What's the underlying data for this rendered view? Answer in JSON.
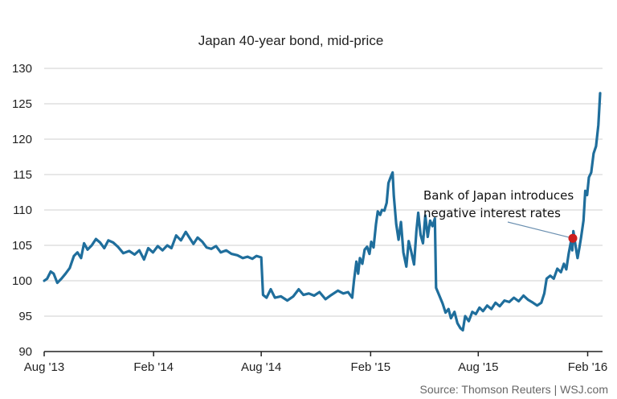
{
  "chart_data": {
    "type": "line",
    "title": "Japan 40-year bond, mid-price",
    "xlabel": "",
    "ylabel": "",
    "ylim": [
      90,
      130
    ],
    "yticks": [
      90,
      95,
      100,
      105,
      110,
      115,
      120,
      125,
      130
    ],
    "xlim": [
      "2013-08-01",
      "2016-02-26"
    ],
    "xticks": [
      {
        "date": "2013-08-01",
        "label": "Aug '13"
      },
      {
        "date": "2014-02-01",
        "label": "Feb '14"
      },
      {
        "date": "2014-08-01",
        "label": "Aug '14"
      },
      {
        "date": "2015-02-01",
        "label": "Feb '15"
      },
      {
        "date": "2015-08-01",
        "label": "Aug '15"
      },
      {
        "date": "2016-02-01",
        "label": "Feb '16"
      }
    ],
    "grid": "horizontal",
    "line_color": "#1f6e9c",
    "series": [
      {
        "points": [
          [
            "2013-08-01",
            100.0
          ],
          [
            "2013-08-06",
            100.3
          ],
          [
            "2013-08-12",
            101.3
          ],
          [
            "2013-08-17",
            101.0
          ],
          [
            "2013-08-23",
            99.7
          ],
          [
            "2013-08-30",
            100.3
          ],
          [
            "2013-09-06",
            101.0
          ],
          [
            "2013-09-13",
            101.8
          ],
          [
            "2013-09-20",
            103.5
          ],
          [
            "2013-09-26",
            104.0
          ],
          [
            "2013-10-02",
            103.2
          ],
          [
            "2013-10-07",
            105.3
          ],
          [
            "2013-10-13",
            104.4
          ],
          [
            "2013-10-20",
            105.0
          ],
          [
            "2013-10-27",
            105.9
          ],
          [
            "2013-11-03",
            105.4
          ],
          [
            "2013-11-10",
            104.6
          ],
          [
            "2013-11-17",
            105.7
          ],
          [
            "2013-11-25",
            105.4
          ],
          [
            "2013-12-03",
            104.8
          ],
          [
            "2013-12-12",
            103.9
          ],
          [
            "2013-12-22",
            104.2
          ],
          [
            "2013-12-31",
            103.7
          ],
          [
            "2014-01-08",
            104.3
          ],
          [
            "2014-01-16",
            103.0
          ],
          [
            "2014-01-23",
            104.6
          ],
          [
            "2014-01-31",
            104.0
          ],
          [
            "2014-02-08",
            104.9
          ],
          [
            "2014-02-16",
            104.3
          ],
          [
            "2014-02-24",
            105.0
          ],
          [
            "2014-03-03",
            104.6
          ],
          [
            "2014-03-11",
            106.4
          ],
          [
            "2014-03-19",
            105.7
          ],
          [
            "2014-03-27",
            106.9
          ],
          [
            "2014-04-03",
            106.0
          ],
          [
            "2014-04-09",
            105.2
          ],
          [
            "2014-04-16",
            106.1
          ],
          [
            "2014-04-24",
            105.5
          ],
          [
            "2014-05-01",
            104.7
          ],
          [
            "2014-05-09",
            104.5
          ],
          [
            "2014-05-17",
            104.9
          ],
          [
            "2014-05-25",
            104.0
          ],
          [
            "2014-06-03",
            104.3
          ],
          [
            "2014-06-12",
            103.8
          ],
          [
            "2014-06-22",
            103.6
          ],
          [
            "2014-07-01",
            103.2
          ],
          [
            "2014-07-09",
            103.4
          ],
          [
            "2014-07-17",
            103.1
          ],
          [
            "2014-07-24",
            103.5
          ],
          [
            "2014-08-01",
            103.3
          ],
          [
            "2014-08-04",
            98.0
          ],
          [
            "2014-08-10",
            97.6
          ],
          [
            "2014-08-17",
            98.8
          ],
          [
            "2014-08-24",
            97.6
          ],
          [
            "2014-09-03",
            97.8
          ],
          [
            "2014-09-14",
            97.2
          ],
          [
            "2014-09-24",
            97.8
          ],
          [
            "2014-10-03",
            98.8
          ],
          [
            "2014-10-11",
            98.0
          ],
          [
            "2014-10-20",
            98.2
          ],
          [
            "2014-10-29",
            97.9
          ],
          [
            "2014-11-07",
            98.4
          ],
          [
            "2014-11-17",
            97.4
          ],
          [
            "2014-11-27",
            98.0
          ],
          [
            "2014-12-08",
            98.6
          ],
          [
            "2014-12-17",
            98.2
          ],
          [
            "2014-12-25",
            98.4
          ],
          [
            "2015-01-01",
            97.6
          ],
          [
            "2015-01-04",
            100.0
          ],
          [
            "2015-01-08",
            102.7
          ],
          [
            "2015-01-11",
            101.0
          ],
          [
            "2015-01-14",
            103.2
          ],
          [
            "2015-01-18",
            102.4
          ],
          [
            "2015-01-22",
            104.4
          ],
          [
            "2015-01-26",
            104.8
          ],
          [
            "2015-01-30",
            103.8
          ],
          [
            "2015-02-02",
            105.5
          ],
          [
            "2015-02-06",
            104.7
          ],
          [
            "2015-02-10",
            108.0
          ],
          [
            "2015-02-13",
            109.8
          ],
          [
            "2015-02-17",
            109.3
          ],
          [
            "2015-02-20",
            110.0
          ],
          [
            "2015-02-24",
            109.9
          ],
          [
            "2015-02-28",
            111.0
          ],
          [
            "2015-03-03",
            113.8
          ],
          [
            "2015-03-07",
            114.7
          ],
          [
            "2015-03-10",
            115.3
          ],
          [
            "2015-03-12",
            112.0
          ],
          [
            "2015-03-16",
            108.0
          ],
          [
            "2015-03-20",
            105.8
          ],
          [
            "2015-03-24",
            108.3
          ],
          [
            "2015-03-28",
            104.0
          ],
          [
            "2015-04-02",
            102.0
          ],
          [
            "2015-04-06",
            105.6
          ],
          [
            "2015-04-10",
            104.2
          ],
          [
            "2015-04-15",
            102.3
          ],
          [
            "2015-04-19",
            107.0
          ],
          [
            "2015-04-22",
            109.6
          ],
          [
            "2015-04-26",
            106.5
          ],
          [
            "2015-04-30",
            105.3
          ],
          [
            "2015-05-04",
            109.2
          ],
          [
            "2015-05-08",
            106.2
          ],
          [
            "2015-05-12",
            108.5
          ],
          [
            "2015-05-16",
            107.7
          ],
          [
            "2015-05-20",
            108.8
          ],
          [
            "2015-05-22",
            99.0
          ],
          [
            "2015-05-27",
            98.0
          ],
          [
            "2015-06-02",
            96.8
          ],
          [
            "2015-06-07",
            95.5
          ],
          [
            "2015-06-12",
            96.0
          ],
          [
            "2015-06-16",
            94.7
          ],
          [
            "2015-06-22",
            95.6
          ],
          [
            "2015-06-27",
            94.0
          ],
          [
            "2015-07-02",
            93.3
          ],
          [
            "2015-07-06",
            93.0
          ],
          [
            "2015-07-10",
            95.0
          ],
          [
            "2015-07-16",
            94.3
          ],
          [
            "2015-07-22",
            95.6
          ],
          [
            "2015-07-28",
            95.3
          ],
          [
            "2015-08-03",
            96.2
          ],
          [
            "2015-08-09",
            95.7
          ],
          [
            "2015-08-16",
            96.5
          ],
          [
            "2015-08-23",
            96.0
          ],
          [
            "2015-08-30",
            96.9
          ],
          [
            "2015-09-06",
            96.4
          ],
          [
            "2015-09-14",
            97.2
          ],
          [
            "2015-09-22",
            97.0
          ],
          [
            "2015-09-30",
            97.6
          ],
          [
            "2015-10-08",
            97.1
          ],
          [
            "2015-10-16",
            97.9
          ],
          [
            "2015-10-24",
            97.3
          ],
          [
            "2015-11-01",
            96.9
          ],
          [
            "2015-11-08",
            96.5
          ],
          [
            "2015-11-15",
            96.9
          ],
          [
            "2015-11-20",
            98.2
          ],
          [
            "2015-11-24",
            100.3
          ],
          [
            "2015-11-30",
            100.7
          ],
          [
            "2015-12-06",
            100.3
          ],
          [
            "2015-12-12",
            101.7
          ],
          [
            "2015-12-18",
            101.2
          ],
          [
            "2015-12-23",
            102.4
          ],
          [
            "2015-12-27",
            101.6
          ],
          [
            "2015-12-31",
            103.8
          ],
          [
            "2016-01-04",
            105.6
          ],
          [
            "2016-01-06",
            104.3
          ],
          [
            "2016-01-08",
            107.0
          ],
          [
            "2016-01-12",
            104.7
          ],
          [
            "2016-01-15",
            103.2
          ],
          [
            "2016-01-18",
            104.6
          ],
          [
            "2016-01-21",
            106.2
          ],
          [
            "2016-01-25",
            108.5
          ],
          [
            "2016-01-28",
            112.7
          ],
          [
            "2016-01-31",
            112.1
          ],
          [
            "2016-02-03",
            114.6
          ],
          [
            "2016-02-07",
            115.3
          ],
          [
            "2016-02-11",
            118.0
          ],
          [
            "2016-02-15",
            119.0
          ],
          [
            "2016-02-19",
            122.0
          ],
          [
            "2016-02-22",
            126.5
          ]
        ]
      }
    ],
    "annotations": [
      {
        "lines": [
          "Bank of Japan introduces",
          "negative interest rates"
        ],
        "point": [
          "2016-01-07",
          106.0
        ],
        "marker_color": "#cc1f1f"
      }
    ]
  },
  "footer": {
    "source": "Source: Thomson Reuters  |  WSJ.com"
  }
}
